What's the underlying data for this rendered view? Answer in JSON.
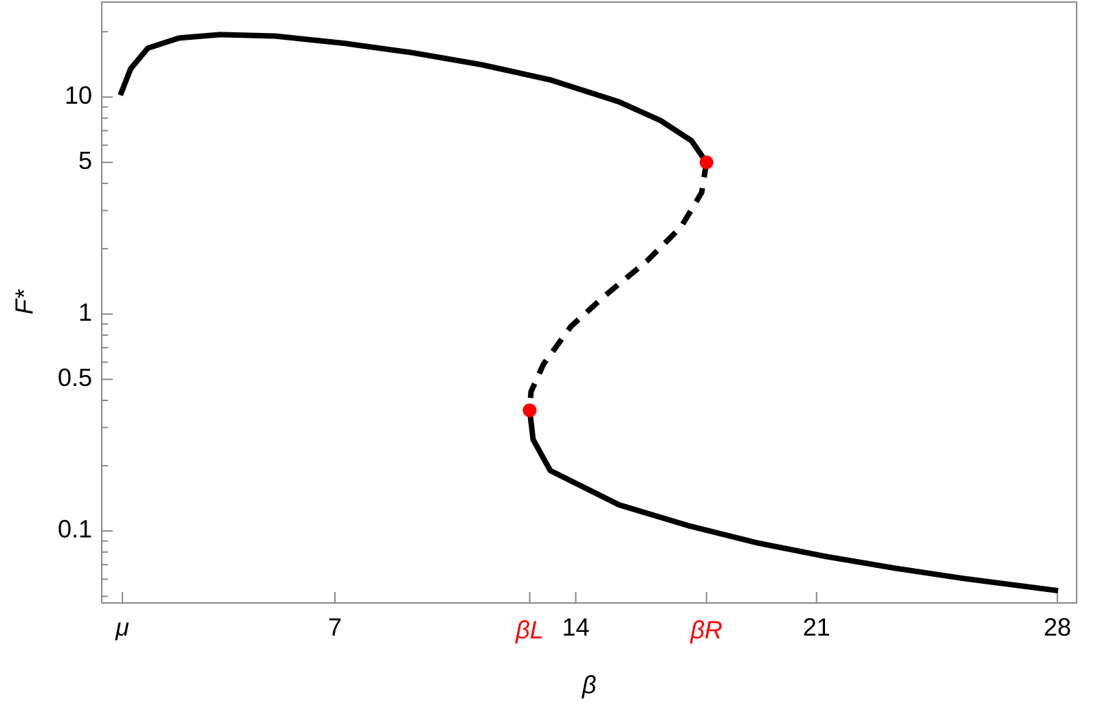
{
  "chart_data": {
    "type": "line",
    "xlabel": "β",
    "ylabel": "F*",
    "xlim": [
      0.22,
      28.56
    ],
    "ylim": [
      0.0466,
      27.4
    ],
    "log_y": true,
    "xticks": [
      {
        "value": 0.82,
        "label": "μ"
      },
      7,
      14,
      21,
      28
    ],
    "yticks": [
      0.1,
      0.5,
      1,
      5,
      10
    ],
    "yminor_ticks": [
      0.05,
      0.06,
      0.07,
      0.08,
      0.09,
      0.2,
      0.3,
      0.4,
      0.6,
      0.7,
      0.8,
      0.9,
      2,
      3,
      4,
      6,
      7,
      8,
      9,
      20
    ],
    "series": [
      {
        "color": "#000000",
        "style": "solid",
        "x": [
          0.76,
          1.06,
          1.56,
          2.46,
          3.66,
          5.26,
          7.26,
          9.26,
          11.26,
          13.26,
          15.26,
          16.46,
          17.36,
          17.8
        ],
        "values": [
          10.2,
          13.5,
          16.8,
          18.7,
          19.4,
          19.1,
          17.7,
          16.0,
          14.1,
          12.0,
          9.5,
          7.8,
          6.3,
          5
        ]
      },
      {
        "color": "#000000",
        "style": "dashed",
        "x": [
          17.8,
          17.66,
          17.06,
          16.06,
          14.86,
          13.86,
          13.06,
          12.7,
          12.66
        ],
        "values": [
          5,
          3.63,
          2.52,
          1.75,
          1.22,
          0.877,
          0.587,
          0.439,
          0.36
        ]
      },
      {
        "color": "#000000",
        "style": "solid",
        "x": [
          12.66,
          12.76,
          13.26,
          15.26,
          17.26,
          19.26,
          21.26,
          23.26,
          25.26,
          28.02
        ],
        "values": [
          0.36,
          0.264,
          0.19,
          0.132,
          0.106,
          0.0883,
          0.0764,
          0.0675,
          0.0605,
          0.0531
        ]
      }
    ],
    "critical_color": "#ff0000",
    "critical_points": [
      {
        "label": "βL",
        "x": 12.66,
        "y": 0.36
      },
      {
        "label": "βR",
        "x": 17.8,
        "y": 5
      }
    ]
  }
}
